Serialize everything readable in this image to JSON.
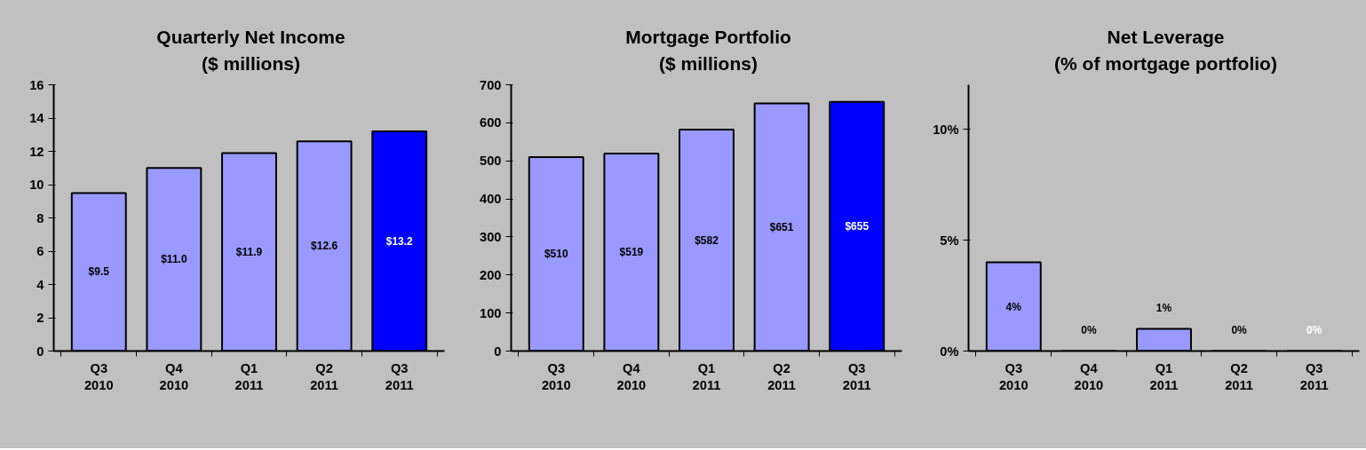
{
  "chart_data": [
    {
      "type": "bar",
      "title": "Quarterly Net Income\n($ millions)",
      "categories": [
        "Q3\n2010",
        "Q4\n2010",
        "Q1\n2011",
        "Q2\n2011",
        "Q3\n2011"
      ],
      "values": [
        9.5,
        11.0,
        11.9,
        12.6,
        13.2
      ],
      "colors": [
        "#9999ff",
        "#9999ff",
        "#9999ff",
        "#9999ff",
        "#0000ff"
      ],
      "value_labels": [
        "$9.5",
        "$11.0",
        "$11.9",
        "$12.6",
        "$13.2"
      ],
      "ylim": [
        0,
        16
      ],
      "yticks": [
        0,
        2,
        4,
        6,
        8,
        10,
        12,
        14,
        16
      ],
      "grid": false
    },
    {
      "type": "bar",
      "title": "Mortgage Portfolio\n($ millions)",
      "categories": [
        "Q3\n2010",
        "Q4\n2010",
        "Q1\n2011",
        "Q2\n2011",
        "Q3\n2011"
      ],
      "values": [
        510,
        519,
        582,
        651,
        655
      ],
      "colors": [
        "#9999ff",
        "#9999ff",
        "#9999ff",
        "#9999ff",
        "#0000ff"
      ],
      "value_labels": [
        "$510",
        "$519",
        "$582",
        "$651",
        "$655"
      ],
      "ylim": [
        0,
        700
      ],
      "yticks": [
        0,
        100,
        200,
        300,
        400,
        500,
        600,
        700
      ],
      "grid": false
    },
    {
      "type": "bar",
      "title": "Net Leverage\n(% of mortgage portfolio)",
      "categories": [
        "Q3\n2010",
        "Q4\n2010",
        "Q1\n2011",
        "Q2\n2011",
        "Q3\n2011"
      ],
      "values": [
        4,
        0,
        1,
        0,
        0
      ],
      "colors": [
        "#9999ff",
        "#9999ff",
        "#9999ff",
        "#9999ff",
        "#0000ff"
      ],
      "value_labels": [
        "4%",
        "0%",
        "1%",
        "0%",
        "0%"
      ],
      "ylim": [
        0,
        12
      ],
      "yticks": [
        {
          "value": 0,
          "label": "0%"
        },
        {
          "value": 5,
          "label": "5%"
        },
        {
          "value": 10,
          "label": "10%"
        }
      ],
      "grid": false
    }
  ]
}
